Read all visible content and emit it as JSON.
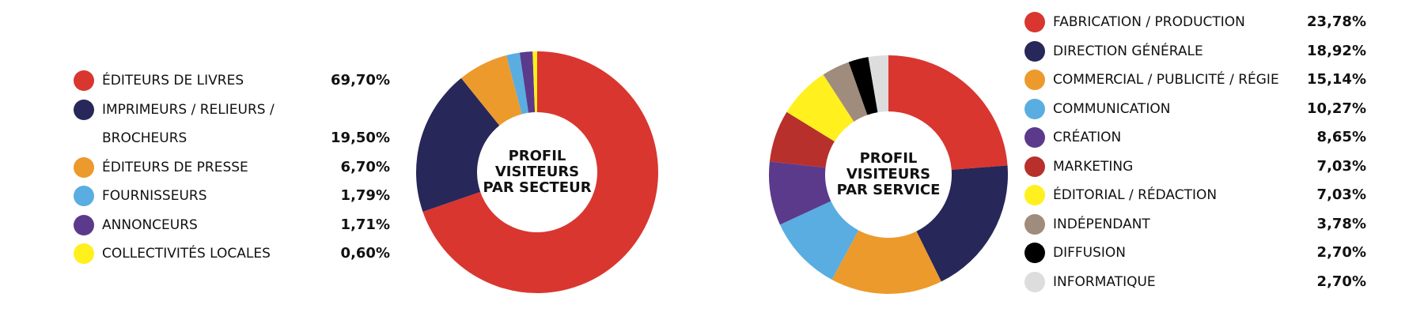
{
  "chart_data": [
    {
      "type": "pie",
      "title": "PROFIL VISITEURS PAR SECTEUR",
      "categories": [
        "ÉDITEURS DE LIVRES",
        "IMPRIMEURS / RELIEURS / BROCHEURS",
        "ÉDITEURS DE PRESSE",
        "FOURNISSEURS",
        "ANNONCEURS",
        "COLLECTIVITÉS LOCALES"
      ],
      "values": [
        69.7,
        19.5,
        6.7,
        1.79,
        1.71,
        0.6
      ],
      "value_labels": [
        "69,70%",
        "19,50%",
        "6,70%",
        "1,79%",
        "1,71%",
        "0,60%"
      ],
      "colors": [
        "#d93630",
        "#27275a",
        "#ec9a2c",
        "#5aade0",
        "#5b3a8c",
        "#fff01e"
      ]
    },
    {
      "type": "pie",
      "title": "PROFIL VISITEURS PAR SERVICE",
      "categories": [
        "FABRICATION / PRODUCTION",
        "DIRECTION GÉNÉRALE",
        "COMMERCIAL / PUBLICITÉ / RÉGIE",
        "COMMUNICATION",
        "CRÉATION",
        "MARKETING",
        "ÉDITORIAL / RÉDACTION",
        "INDÉPENDANT",
        "DIFFUSION",
        "INFORMATIQUE"
      ],
      "values": [
        23.78,
        18.92,
        15.14,
        10.27,
        8.65,
        7.03,
        7.03,
        3.78,
        2.7,
        2.7
      ],
      "value_labels": [
        "23,78%",
        "18,92%",
        "15,14%",
        "10,27%",
        "8,65%",
        "7,03%",
        "7,03%",
        "3,78%",
        "2,70%",
        "2,70%"
      ],
      "colors": [
        "#d93630",
        "#27275a",
        "#ec9a2c",
        "#5aade0",
        "#5b3a8c",
        "#b8302c",
        "#fff01e",
        "#a08c7c",
        "#000000",
        "#dddddd"
      ]
    }
  ]
}
